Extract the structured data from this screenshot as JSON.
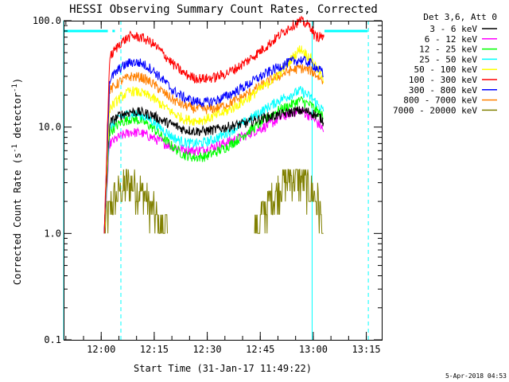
{
  "chart_data": {
    "type": "line",
    "title": "HESSI Observing Summary Count Rates, Corrected",
    "xlabel": "Start Time (31-Jan-17 11:49:22)",
    "ylabel": "Corrected Count Rate (s⁻¹ detector⁻¹)",
    "ylabel_parts": {
      "main": "Corrected Count Rate (s",
      "sup1": "-1",
      "mid": " detector",
      "sup2": "-1",
      "end": ")"
    },
    "yscale": "log",
    "ylim": [
      0.1,
      100
    ],
    "xlim_minutes": [
      0,
      90
    ],
    "y_tick_labels": [
      "0.1",
      "1.0",
      "10.0",
      "100.0"
    ],
    "y_tick_values": [
      0.1,
      1,
      10,
      100
    ],
    "x_tick_labels": [
      "12:00",
      "12:15",
      "12:30",
      "12:45",
      "13:00",
      "13:15"
    ],
    "x_tick_values_minutes": [
      10.63,
      25.63,
      40.63,
      55.63,
      70.63,
      85.63
    ],
    "legend_header": "Det 3,6, Att 0",
    "legend_position": "right",
    "data_window_minutes": [
      11.5,
      73.5
    ],
    "series": [
      {
        "name": "3 - 6 keV",
        "color": "#000000",
        "x": [
          11.5,
          13,
          16,
          19,
          22,
          25,
          28,
          31,
          34,
          37,
          40,
          43,
          46,
          49,
          52,
          55,
          58,
          61,
          64,
          67,
          70,
          73,
          73.5
        ],
        "y": [
          1.0,
          11,
          13,
          14,
          13.8,
          13,
          11.5,
          10.5,
          9.5,
          9.2,
          9.2,
          9.5,
          10,
          10.5,
          11,
          11.8,
          12.5,
          13,
          13.8,
          14.3,
          13.8,
          12,
          11
        ]
      },
      {
        "name": "6 - 12 keV",
        "color": "#ff00ff",
        "x": [
          11.5,
          13,
          16,
          19,
          22,
          25,
          28,
          31,
          34,
          37,
          40,
          43,
          46,
          49,
          52,
          55,
          58,
          61,
          64,
          67,
          70,
          73,
          73.5
        ],
        "y": [
          1.0,
          7,
          8.2,
          9,
          8.8,
          8,
          7.2,
          6.5,
          6.2,
          6,
          6.2,
          6.6,
          7.2,
          7.8,
          8.5,
          9.5,
          10.5,
          12,
          13.5,
          14.5,
          12.5,
          10,
          9
        ]
      },
      {
        "name": "12 - 25 keV",
        "color": "#00ff00",
        "x": [
          11.5,
          13,
          16,
          19,
          22,
          25,
          28,
          31,
          34,
          37,
          40,
          43,
          46,
          49,
          52,
          55,
          58,
          61,
          64,
          67,
          70,
          73,
          73.5
        ],
        "y": [
          1.0,
          9,
          11,
          12,
          11.5,
          10,
          8,
          6.5,
          5.5,
          5.2,
          5.3,
          5.8,
          6.5,
          7.5,
          9,
          10.5,
          12.5,
          14.5,
          16,
          18,
          16,
          13,
          12
        ]
      },
      {
        "name": "25 - 50 keV",
        "color": "#00ffff",
        "x": [
          11.5,
          13,
          16,
          19,
          22,
          25,
          28,
          31,
          34,
          37,
          40,
          43,
          46,
          49,
          52,
          55,
          58,
          61,
          64,
          67,
          70,
          73,
          73.5
        ],
        "y": [
          1.0,
          10,
          12.5,
          13.5,
          13,
          11.5,
          9.5,
          8,
          7.2,
          7,
          7.2,
          7.8,
          8.8,
          10,
          11.5,
          13.5,
          15.5,
          18,
          20,
          22,
          19,
          15,
          14
        ]
      },
      {
        "name": "50 - 100 keV",
        "color": "#ffff00",
        "x": [
          11.5,
          13,
          16,
          19,
          22,
          25,
          28,
          31,
          34,
          37,
          40,
          43,
          46,
          49,
          52,
          55,
          58,
          61,
          64,
          67,
          70,
          73,
          73.5
        ],
        "y": [
          1.0,
          15,
          19,
          22,
          21,
          19,
          16,
          13.5,
          12,
          11.5,
          11.8,
          12.8,
          14,
          16,
          18.5,
          22,
          26,
          32,
          42,
          55,
          44,
          30,
          26
        ]
      },
      {
        "name": "100 - 300 keV",
        "color": "#ff0000",
        "x": [
          11.5,
          13,
          16,
          19,
          22,
          25,
          28,
          31,
          34,
          37,
          40,
          43,
          46,
          49,
          52,
          55,
          58,
          61,
          64,
          67,
          70,
          71,
          73.5
        ],
        "y": [
          1.0,
          45,
          62,
          72,
          70,
          62,
          50,
          39,
          32,
          29,
          28.5,
          29.5,
          32,
          36,
          42,
          50,
          60,
          73,
          88,
          100,
          88,
          72,
          70
        ]
      },
      {
        "name": "300 - 800 keV",
        "color": "#0000ff",
        "x": [
          11.5,
          13,
          16,
          19,
          22,
          25,
          28,
          31,
          34,
          37,
          40,
          43,
          46,
          49,
          52,
          55,
          58,
          61,
          64,
          67,
          70,
          73,
          73.5
        ],
        "y": [
          1.0,
          28,
          36,
          41,
          40,
          35,
          28,
          22,
          19,
          17.5,
          17,
          17.8,
          19.5,
          22,
          25,
          29,
          33,
          37,
          41,
          43,
          40,
          33,
          30
        ]
      },
      {
        "name": "800 - 7000 keV",
        "color": "#ff8000",
        "x": [
          11.5,
          13,
          16,
          19,
          22,
          25,
          28,
          31,
          34,
          37,
          40,
          43,
          46,
          49,
          52,
          55,
          58,
          61,
          64,
          67,
          70,
          73,
          73.5
        ],
        "y": [
          1.0,
          22,
          27,
          30,
          29.5,
          26,
          21.5,
          18,
          16,
          15,
          14.7,
          15,
          16.2,
          18,
          20.5,
          23.5,
          27,
          30.5,
          34,
          36,
          34,
          28,
          26
        ]
      },
      {
        "name": "7000 - 20000 keV",
        "color": "#808000",
        "x": [
          11.5,
          12,
          14,
          16,
          18,
          20,
          22,
          24,
          26,
          27,
          28,
          29.5,
          54,
          56,
          58,
          60,
          62,
          64,
          66,
          68,
          70,
          72,
          73.5
        ],
        "y": [
          1.0,
          1.5,
          2.0,
          2.5,
          3.0,
          3.0,
          2.5,
          2.0,
          1.5,
          1.0,
          1.3,
          1.0,
          1.0,
          1.5,
          2.0,
          2.5,
          3.0,
          3.5,
          3.5,
          3.0,
          2.5,
          2.0,
          1.0
        ]
      }
    ],
    "flags": {
      "saa_bar": {
        "color": "#00ffff",
        "level": 80,
        "segments_minutes": [
          [
            0,
            12.5
          ],
          [
            13.8,
            14.5
          ],
          [
            73.8,
            86
          ]
        ]
      },
      "night_lines": {
        "color": "#00ffff",
        "solid_minutes": [
          0,
          70.3
        ],
        "dashed_minutes": [
          16.2,
          86.2
        ]
      },
      "other_markers": {
        "color": "#ff0000",
        "segment_minutes": [
          72.5,
          73.7
        ],
        "level": 72
      }
    }
  },
  "footer": {
    "timestamp": "5-Apr-2018 04:53"
  }
}
